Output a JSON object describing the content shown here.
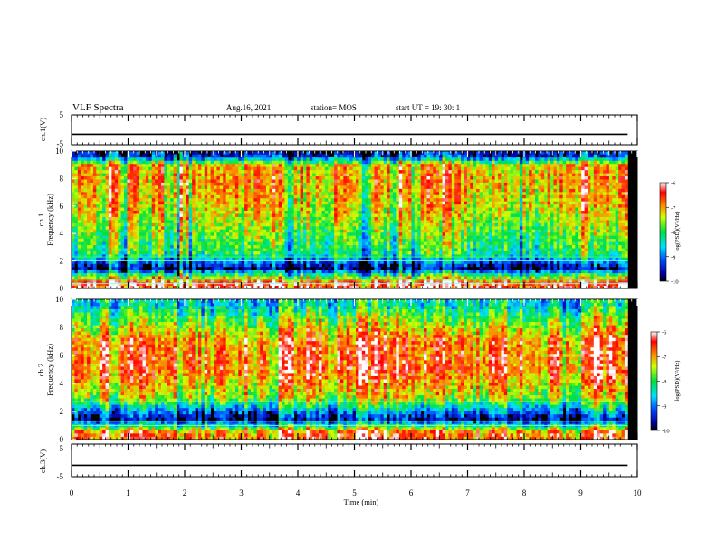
{
  "header": {
    "title": "VLF Spectra",
    "date": "Aug.16, 2021",
    "station": "station= MOS",
    "start": "start  UT =   19: 30: 1"
  },
  "chart_data": {
    "type": "heatmap",
    "x": {
      "label": "Time  (min)",
      "range": [
        0,
        10
      ],
      "ticks": [
        "0",
        "1",
        "2",
        "3",
        "4",
        "5",
        "6",
        "7",
        "8",
        "9",
        "10"
      ]
    },
    "panels": [
      {
        "id": "ch1_waveform",
        "ylabel": "ch.1(V)",
        "ylim": [
          -5,
          5
        ],
        "ticks": [
          "5",
          "-5"
        ],
        "baseline": -1.5
      },
      {
        "id": "ch1_spectrogram",
        "ylabel_line1": "ch.1",
        "ylabel_line2": "Frequency  (kHz)",
        "ylim": [
          0,
          10
        ],
        "ticks": [
          "0",
          "2",
          "4",
          "6",
          "8",
          "10"
        ],
        "intensity_profile": [
          {
            "freq_khz": 0.5,
            "level": 0.9
          },
          {
            "freq_khz": 1.5,
            "level": 0.05
          },
          {
            "freq_khz": 2.5,
            "level": 0.45
          },
          {
            "freq_khz": 4.0,
            "level": 0.55
          },
          {
            "freq_khz": 6.0,
            "level": 0.68
          },
          {
            "freq_khz": 8.0,
            "level": 0.75
          },
          {
            "freq_khz": 9.0,
            "level": 0.7
          },
          {
            "freq_khz": 9.7,
            "level": 0.1
          }
        ],
        "line_freqs_khz": [
          0.35,
          0.6,
          2.0,
          2.3
        ],
        "colorbar": {
          "label": "log(PSD)(V²/Hz)",
          "ticks": [
            "-6",
            "-7",
            "-8",
            "-9",
            "-10"
          ],
          "range": [
            -10,
            -6
          ]
        }
      },
      {
        "id": "ch2_spectrogram",
        "ylabel_line1": "ch.2",
        "ylabel_line2": "Frequency  (kHz)",
        "ylim": [
          0,
          10
        ],
        "ticks": [
          "0",
          "2",
          "4",
          "6",
          "8",
          "10"
        ],
        "intensity_profile": [
          {
            "freq_khz": 0.5,
            "level": 0.85
          },
          {
            "freq_khz": 1.5,
            "level": 0.1
          },
          {
            "freq_khz": 3.0,
            "level": 0.65
          },
          {
            "freq_khz": 5.0,
            "level": 0.85
          },
          {
            "freq_khz": 7.0,
            "level": 0.82
          },
          {
            "freq_khz": 8.5,
            "level": 0.6
          },
          {
            "freq_khz": 9.7,
            "level": 0.4
          }
        ],
        "line_freqs_khz": [
          1.0,
          1.3,
          2.7
        ],
        "colorbar": {
          "label": "log(PSD)(V²/Hz)",
          "ticks": [
            "-6",
            "-7",
            "-8",
            "-9",
            "-10"
          ],
          "range": [
            -10,
            -6
          ]
        }
      },
      {
        "id": "ch3_waveform",
        "ylabel": "ch.3(V)",
        "ylim": [
          -5,
          5
        ],
        "ticks": [
          "5",
          "-5"
        ],
        "baseline": -1.5
      }
    ],
    "data_end_min": 9.83,
    "grid": false
  }
}
